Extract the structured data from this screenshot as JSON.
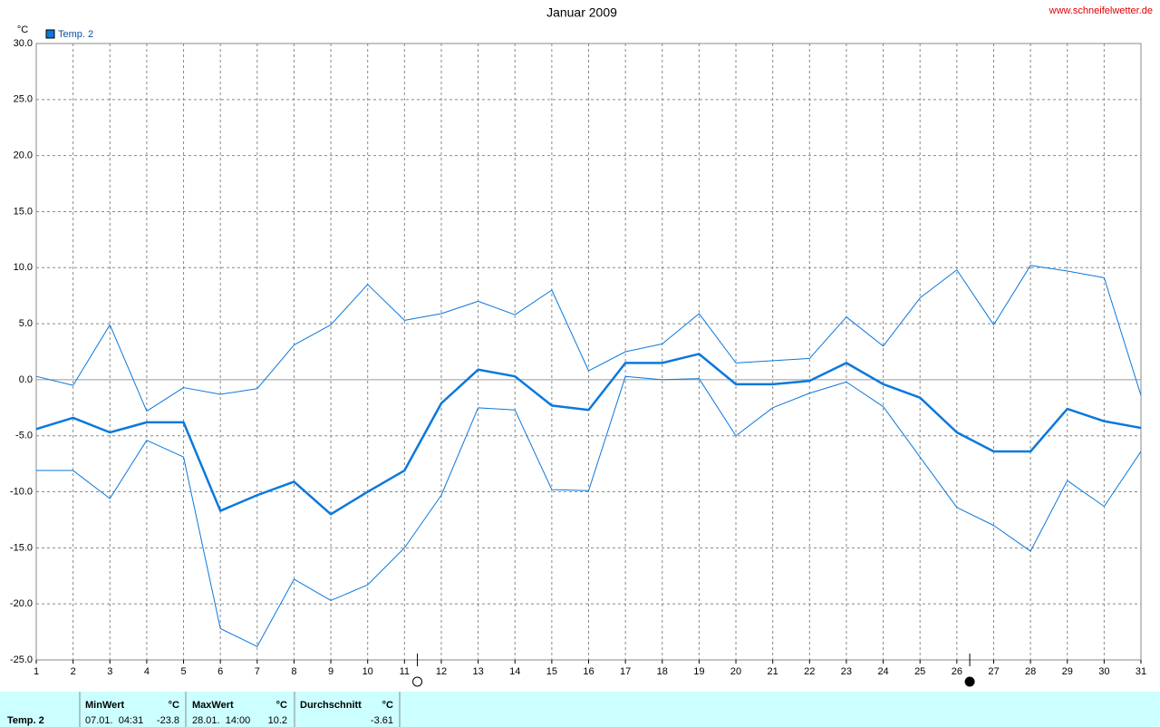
{
  "chart_data": {
    "type": "line",
    "title": "Januar 2009",
    "source": "www.schneifelwetter.de",
    "y_unit": "°C",
    "x": [
      1,
      2,
      3,
      4,
      5,
      6,
      7,
      8,
      9,
      10,
      11,
      12,
      13,
      14,
      15,
      16,
      17,
      18,
      19,
      20,
      21,
      22,
      23,
      24,
      25,
      26,
      27,
      28,
      29,
      30,
      31
    ],
    "xlim": [
      1,
      31
    ],
    "xticks": [
      1,
      2,
      3,
      4,
      5,
      6,
      7,
      8,
      9,
      10,
      11,
      12,
      13,
      14,
      15,
      16,
      17,
      18,
      19,
      20,
      21,
      22,
      23,
      24,
      25,
      26,
      27,
      28,
      29,
      30,
      31
    ],
    "ylim": [
      -25,
      30
    ],
    "yticks": [
      {
        "value": -25,
        "label": "-25.0"
      },
      {
        "value": -20,
        "label": "-20.0"
      },
      {
        "value": -15,
        "label": "-15.0"
      },
      {
        "value": -10,
        "label": "-10.0"
      },
      {
        "value": -5,
        "label": "-5.0"
      },
      {
        "value": 0,
        "label": "0.0"
      },
      {
        "value": 5,
        "label": "5.0"
      },
      {
        "value": 10,
        "label": "10.0"
      },
      {
        "value": 15,
        "label": "15.0"
      },
      {
        "value": 20,
        "label": "20.0"
      },
      {
        "value": 25,
        "label": "25.0"
      },
      {
        "value": 30,
        "label": "30.0"
      }
    ],
    "grid": true,
    "series": [
      {
        "name": "Temp. 2",
        "color": "#0a78dc",
        "width": 2.5,
        "values": [
          -4.4,
          -3.4,
          -4.7,
          -3.8,
          -3.8,
          -11.7,
          -10.3,
          -9.1,
          -12.0,
          -10.0,
          -8.1,
          -2.1,
          0.9,
          0.3,
          -2.3,
          -2.7,
          1.5,
          1.5,
          2.3,
          -0.4,
          -0.4,
          -0.1,
          1.5,
          -0.4,
          -1.6,
          -4.7,
          -6.4,
          -6.4,
          -2.6,
          -3.7,
          -4.3
        ]
      },
      {
        "color": "#0a78dc",
        "width": 1,
        "values": [
          0.3,
          -0.5,
          4.9,
          -2.8,
          -0.7,
          -1.3,
          -0.8,
          3.1,
          4.9,
          8.5,
          5.3,
          5.9,
          7.0,
          5.8,
          8.0,
          0.8,
          2.5,
          3.2,
          5.9,
          1.5,
          1.7,
          1.9,
          5.6,
          3.0,
          7.3,
          9.8,
          4.9,
          10.2,
          9.7,
          9.1,
          -1.4
        ]
      },
      {
        "color": "#0a78dc",
        "width": 1,
        "values": [
          -8.1,
          -8.1,
          -10.6,
          -5.4,
          -6.9,
          -22.2,
          -23.8,
          -17.8,
          -19.7,
          -18.3,
          -15.0,
          -10.3,
          -2.5,
          -2.7,
          -9.8,
          -9.9,
          0.3,
          0.0,
          0.1,
          -5.0,
          -2.5,
          -1.2,
          -0.2,
          -2.4,
          -6.9,
          -11.4,
          -13.0,
          -15.3,
          -9.0,
          -11.3,
          -6.4
        ]
      }
    ],
    "moon_x": [
      11.35,
      26.35
    ]
  },
  "summary": {
    "sensor": "Temp. 2",
    "min": {
      "label": "MinWert",
      "unit": "°C",
      "time": "07.01.  04:31",
      "value": -23.8
    },
    "max": {
      "label": "MaxWert",
      "unit": "°C",
      "time": "28.01.  14:00",
      "value": 10.2
    },
    "avg": {
      "label": "Durchschnitt",
      "unit": "°C",
      "value": -3.61
    }
  }
}
